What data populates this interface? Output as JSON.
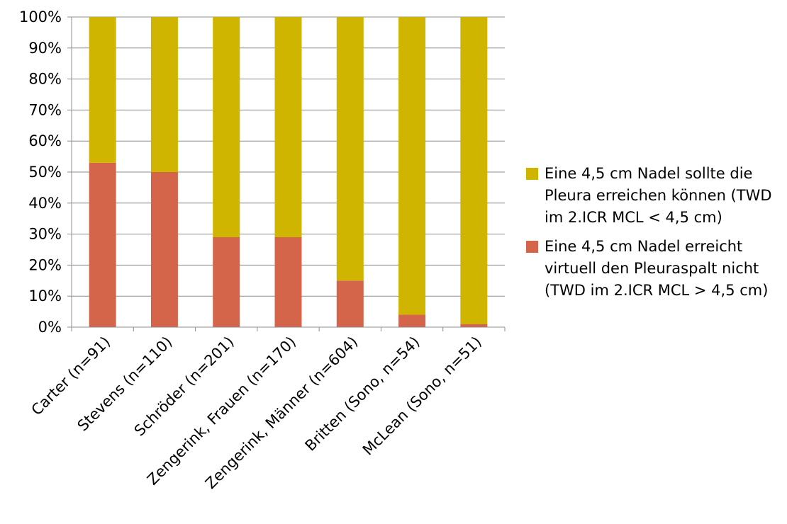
{
  "chart_data": {
    "type": "bar",
    "stacked": true,
    "percent": true,
    "categories": [
      "Carter (n=91)",
      "Stevens (n=110)",
      "Schröder (n=201)",
      "Zengerink, Frauen (n=170)",
      "Zengerink, Männer (n=604)",
      "Britten (Sono, n=54)",
      "McLean (Sono, n=51)"
    ],
    "series": [
      {
        "name": "Eine 4,5 cm Nadel erreicht virtuell den Pleuraspalt nicht (TWD im 2.ICR MCL > 4,5 cm)",
        "color": "#d4654b",
        "values": [
          53,
          50,
          29,
          29,
          15,
          4,
          1
        ]
      },
      {
        "name": "Eine 4,5 cm Nadel sollte die Pleura erreichen können (TWD im 2.ICR MCL < 4,5 cm)",
        "color": "#cfb500",
        "values": [
          47,
          50,
          71,
          71,
          85,
          96,
          99
        ]
      }
    ],
    "yticks": [
      "0%",
      "10%",
      "20%",
      "30%",
      "40%",
      "50%",
      "60%",
      "70%",
      "80%",
      "90%",
      "100%"
    ],
    "ylim": [
      0,
      100
    ],
    "grid": true,
    "legend_position": "right"
  },
  "legend": [
    {
      "label": "Eine 4,5 cm Nadel sollte die Pleura erreichen können (TWD im 2.ICR MCL < 4,5 cm)",
      "color": "#cfb500"
    },
    {
      "label": "Eine 4,5 cm Nadel erreicht virtuell den Pleuraspalt nicht (TWD im 2.ICR MCL > 4,5 cm)",
      "color": "#d4654b"
    }
  ]
}
